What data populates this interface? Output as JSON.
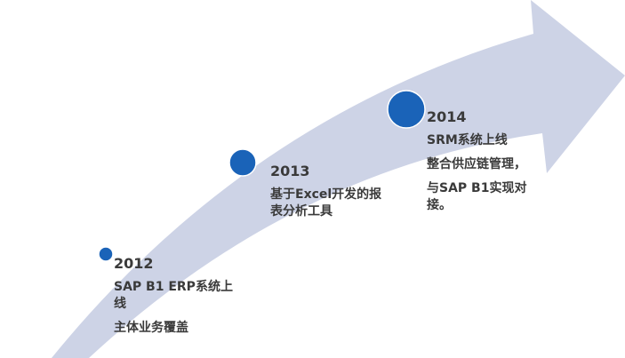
{
  "arrow_color": "#cdd3e6",
  "dot_color": "#1a63b8",
  "milestones": [
    {
      "year": "2012",
      "lines": [
        "SAP B1 ERP系统上线",
        "主体业务覆盖"
      ]
    },
    {
      "year": "2013",
      "lines": [
        "基于Excel开发的报表分析工具"
      ]
    },
    {
      "year": "2014",
      "lines": [
        "SRM系统上线",
        "整合供应链管理，",
        "与SAP B1实现对接。"
      ]
    }
  ]
}
